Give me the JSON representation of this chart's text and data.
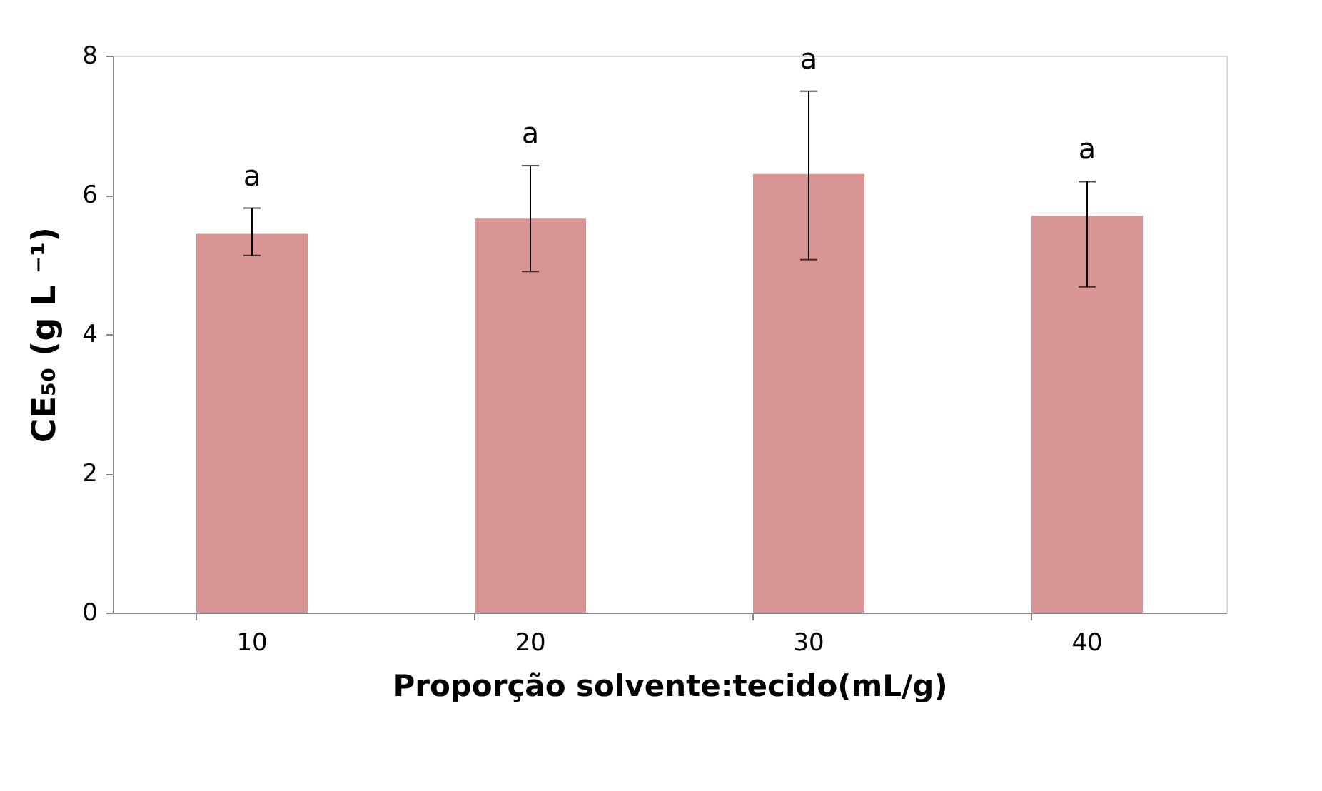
{
  "chart_data": {
    "type": "bar",
    "xlabel": "Proporção solvente:tecido(mL/g)",
    "ylabel": "CE₅₀ (g L ⁻¹)",
    "categories": [
      "10",
      "20",
      "30",
      "40"
    ],
    "values": [
      5.44,
      5.66,
      6.3,
      5.7
    ],
    "errors": [
      [
        5.13,
        5.81
      ],
      [
        4.9,
        6.42
      ],
      [
        5.07,
        7.49
      ],
      [
        4.68,
        6.19
      ]
    ],
    "color": "#d99594",
    "ylim": [
      0,
      8
    ],
    "yticks": [
      0,
      2,
      4,
      6,
      8
    ],
    "grid": false,
    "annotations": [
      "a",
      "a",
      "a",
      "a"
    ]
  }
}
